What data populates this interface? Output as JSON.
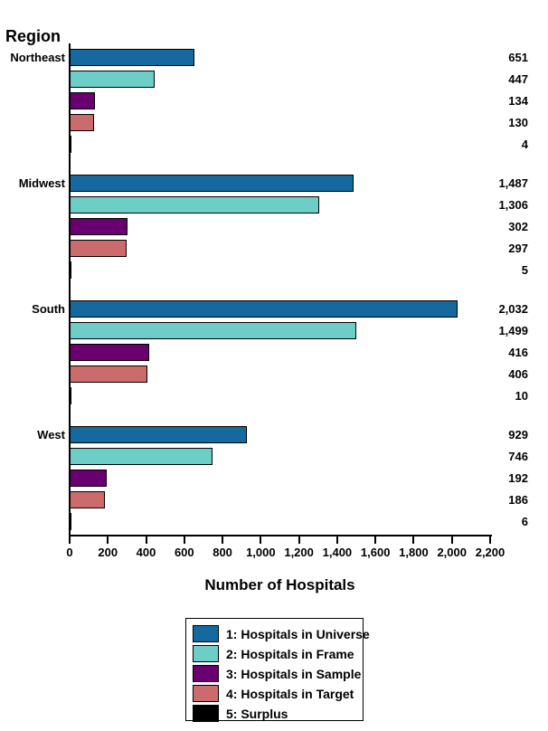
{
  "chart_data": {
    "type": "bar",
    "orientation": "horizontal",
    "ylabel": "Region",
    "xlabel": "Number of Hospitals",
    "categories": [
      "Northeast",
      "Midwest",
      "South",
      "West"
    ],
    "series": [
      {
        "name": "1: Hospitals in Universe",
        "color": "#16699E",
        "values": [
          651,
          1487,
          2032,
          929
        ]
      },
      {
        "name": "2: Hospitals in Frame",
        "color": "#6CCEC6",
        "values": [
          447,
          1306,
          1499,
          746
        ]
      },
      {
        "name": "3: Hospitals in Sample",
        "color": "#6A0070",
        "values": [
          134,
          302,
          416,
          192
        ]
      },
      {
        "name": "4: Hospitals in Target",
        "color": "#CC6B6B",
        "values": [
          130,
          297,
          406,
          186
        ]
      },
      {
        "name": "5: Surplus",
        "color": "#000000",
        "values": [
          4,
          5,
          10,
          6
        ]
      }
    ],
    "value_labels": [
      [
        "651",
        "447",
        "134",
        "130",
        "4"
      ],
      [
        "1,487",
        "1,306",
        "302",
        "297",
        "5"
      ],
      [
        "2,032",
        "1,499",
        "416",
        "406",
        "10"
      ],
      [
        "929",
        "746",
        "192",
        "186",
        "6"
      ]
    ],
    "xlim": [
      0,
      2200
    ],
    "xticks": [
      "0",
      "200",
      "400",
      "600",
      "800",
      "1,000",
      "1,200",
      "1,400",
      "1,600",
      "1,800",
      "2,000",
      "2,200"
    ],
    "grid": false,
    "legend_position": "bottom-center",
    "bar_border_color": "#000000",
    "axis_color": "#000000"
  }
}
